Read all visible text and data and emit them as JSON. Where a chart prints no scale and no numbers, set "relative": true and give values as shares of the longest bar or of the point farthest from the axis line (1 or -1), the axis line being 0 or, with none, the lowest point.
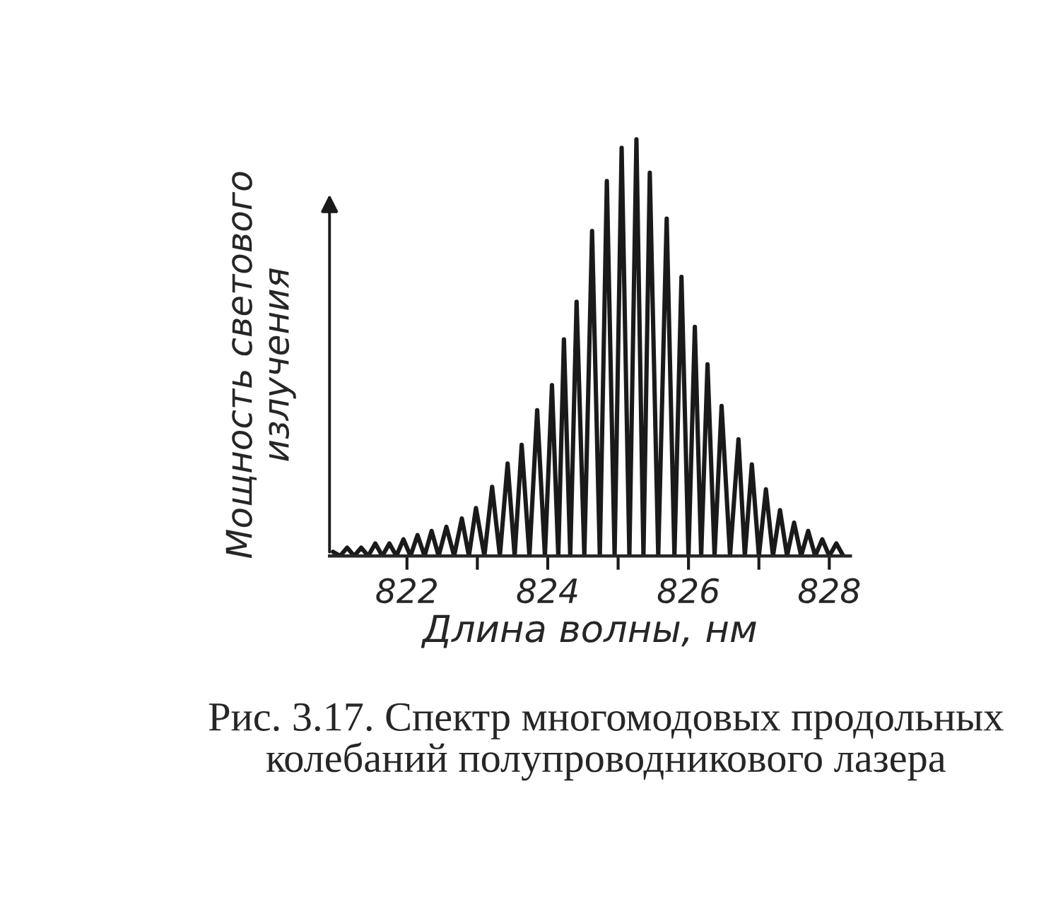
{
  "chart_data": {
    "type": "line",
    "relative": true,
    "xlabel": "Длина волны, нм",
    "ylabel": "Мощность светового\nизлучения",
    "x": [
      820.95,
      821.05,
      821.15,
      821.25,
      821.35,
      821.45,
      821.55,
      821.65,
      821.75,
      821.85,
      821.95,
      822.05,
      822.15,
      822.25,
      822.35,
      822.45,
      822.56,
      822.67,
      822.78,
      822.88,
      822.98,
      823.1,
      823.21,
      823.32,
      823.43,
      823.53,
      823.63,
      823.74,
      823.85,
      823.96,
      824.06,
      824.15,
      824.23,
      824.32,
      824.41,
      824.52,
      824.63,
      824.74,
      824.84,
      824.95,
      825.05,
      825.16,
      825.26,
      825.36,
      825.45,
      825.57,
      825.69,
      825.8,
      825.9,
      826.0,
      826.09,
      826.18,
      826.27,
      826.37,
      826.47,
      826.59,
      826.71,
      826.8,
      826.9,
      827.0,
      827.1,
      827.2,
      827.3,
      827.4,
      827.5,
      827.6,
      827.7,
      827.8,
      827.9,
      828.0,
      828.1,
      828.2
    ],
    "series": [
      {
        "color": "#1a1a1a",
        "values": [
          0.01,
          0.0,
          0.02,
          0.0,
          0.02,
          0.0,
          0.03,
          0.0,
          0.03,
          0.0,
          0.04,
          0.0,
          0.05,
          0.0,
          0.06,
          0.0,
          0.07,
          0.0,
          0.09,
          0.0,
          0.115,
          0.0,
          0.166,
          0.0,
          0.222,
          0.0,
          0.267,
          0.0,
          0.35,
          0.0,
          0.41,
          0.0,
          0.52,
          0.0,
          0.61,
          0.0,
          0.78,
          0.0,
          0.9,
          0.0,
          0.98,
          0.0,
          1.0,
          0.0,
          0.92,
          0.0,
          0.81,
          0.0,
          0.67,
          0.0,
          0.55,
          0.0,
          0.46,
          0.0,
          0.36,
          0.0,
          0.28,
          0.0,
          0.22,
          0.0,
          0.16,
          0.0,
          0.11,
          0.0,
          0.08,
          0.0,
          0.06,
          0.0,
          0.04,
          0.0,
          0.03,
          0.0
        ]
      }
    ],
    "xlim": [
      820.9,
      828.3
    ],
    "xticks": [
      822,
      {
        "value": 823,
        "label": null
      },
      824,
      {
        "value": 825,
        "label": null
      },
      826,
      {
        "value": 827,
        "label": null
      },
      828
    ],
    "grid": false,
    "annotations": [
      "Рис. 3.17. Спектр многомодовых продольных колебаний полупроводникового лазера"
    ]
  }
}
